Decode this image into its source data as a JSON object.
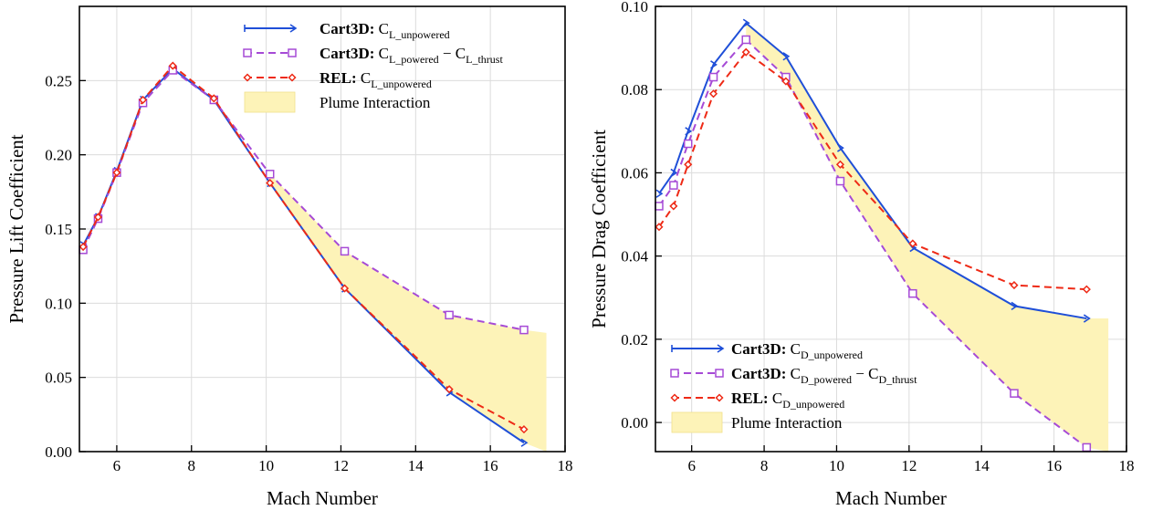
{
  "chart_data": [
    {
      "type": "line",
      "xlabel": "Mach Number",
      "ylabel": "Pressure Lift Coefficient",
      "xlim": [
        5,
        18
      ],
      "ylim": [
        0,
        0.3
      ],
      "xticks": [
        6,
        8,
        10,
        12,
        14,
        16,
        18
      ],
      "xtick_labels": [
        "6",
        "8",
        "10",
        "12",
        "14",
        "16",
        "18"
      ],
      "yticks": [
        0.0,
        0.05,
        0.1,
        0.15,
        0.2,
        0.25
      ],
      "ytick_labels": [
        "0.00",
        "0.05",
        "0.10",
        "0.15",
        "0.20",
        "0.25"
      ],
      "grid": true,
      "legend": {
        "position": "top-right",
        "entries": [
          {
            "prefix": "Cart3D:",
            "main": "C",
            "sub": "L_unpowered",
            "tail_main": "",
            "tail_sub": ""
          },
          {
            "prefix": "Cart3D:",
            "main": "C",
            "sub": "L_powered",
            "tail_main": " − C",
            "tail_sub": "L_thrust"
          },
          {
            "prefix": "REL:",
            "main": "C",
            "sub": "L_unpowered",
            "tail_main": "",
            "tail_sub": ""
          },
          {
            "prefix": "",
            "main": "Plume Interaction",
            "sub": "",
            "tail_main": "",
            "tail_sub": ""
          }
        ]
      },
      "series": [
        {
          "label_index": 0,
          "color": "#1f4fd8",
          "dash": "solid",
          "marker": "tri",
          "x": [
            5.1,
            5.5,
            6.0,
            6.7,
            7.5,
            8.6,
            10.1,
            12.1,
            14.9,
            16.9
          ],
          "y": [
            0.139,
            0.158,
            0.189,
            0.237,
            0.258,
            0.237,
            0.181,
            0.11,
            0.04,
            0.006
          ]
        },
        {
          "label_index": 1,
          "color": "#a64ad6",
          "dash": "dashed",
          "marker": "square",
          "x": [
            5.1,
            5.5,
            6.0,
            6.7,
            7.5,
            8.6,
            10.1,
            12.1,
            14.9,
            16.9
          ],
          "y": [
            0.136,
            0.157,
            0.188,
            0.235,
            0.257,
            0.237,
            0.187,
            0.135,
            0.092,
            0.082
          ]
        },
        {
          "label_index": 2,
          "color": "#ee2a16",
          "dash": "dashed",
          "marker": "diamond",
          "x": [
            5.1,
            5.5,
            6.0,
            6.7,
            7.5,
            8.6,
            10.1,
            12.1,
            14.9,
            16.9
          ],
          "y": [
            0.138,
            0.158,
            0.188,
            0.237,
            0.26,
            0.238,
            0.181,
            0.11,
            0.042,
            0.015
          ]
        }
      ],
      "fill_between": {
        "color": "#fdf3b8",
        "x": [
          10.1,
          12.1,
          14.9,
          16.9,
          17.5
        ],
        "y_upper": [
          0.187,
          0.135,
          0.092,
          0.082,
          0.08
        ],
        "y_lower": [
          0.181,
          0.11,
          0.04,
          0.006,
          -0.003
        ]
      }
    },
    {
      "type": "line",
      "xlabel": "Mach Number",
      "ylabel": "Pressure Drag Coefficient",
      "xlim": [
        5,
        18
      ],
      "ylim": [
        -0.007,
        0.1
      ],
      "xticks": [
        6,
        8,
        10,
        12,
        14,
        16,
        18
      ],
      "xtick_labels": [
        "6",
        "8",
        "10",
        "12",
        "14",
        "16",
        "18"
      ],
      "yticks": [
        0.0,
        0.02,
        0.04,
        0.06,
        0.08,
        0.1
      ],
      "ytick_labels": [
        "0.00",
        "0.02",
        "0.04",
        "0.06",
        "0.08",
        "0.10"
      ],
      "grid": true,
      "legend": {
        "position": "bottom-left",
        "entries": [
          {
            "prefix": "Cart3D:",
            "main": "C",
            "sub": "D_unpowered",
            "tail_main": "",
            "tail_sub": ""
          },
          {
            "prefix": "Cart3D:",
            "main": "C",
            "sub": "D_powered",
            "tail_main": " − C",
            "tail_sub": "D_thrust"
          },
          {
            "prefix": "REL:",
            "main": "C",
            "sub": "D_unpowered",
            "tail_main": "",
            "tail_sub": ""
          },
          {
            "prefix": "",
            "main": "Plume Interaction",
            "sub": "",
            "tail_main": "",
            "tail_sub": ""
          }
        ]
      },
      "series": [
        {
          "label_index": 0,
          "color": "#1f4fd8",
          "dash": "solid",
          "marker": "tri",
          "x": [
            5.1,
            5.5,
            5.9,
            6.6,
            7.5,
            8.6,
            10.1,
            12.1,
            14.9,
            16.9
          ],
          "y": [
            0.055,
            0.06,
            0.07,
            0.086,
            0.096,
            0.088,
            0.066,
            0.042,
            0.028,
            0.025
          ]
        },
        {
          "label_index": 1,
          "color": "#a64ad6",
          "dash": "dashed",
          "marker": "square",
          "x": [
            5.1,
            5.5,
            5.9,
            6.6,
            7.5,
            8.6,
            10.1,
            12.1,
            14.9,
            16.9
          ],
          "y": [
            0.052,
            0.057,
            0.067,
            0.083,
            0.092,
            0.083,
            0.058,
            0.031,
            0.007,
            -0.006
          ]
        },
        {
          "label_index": 2,
          "color": "#ee2a16",
          "dash": "dashed",
          "marker": "diamond",
          "x": [
            5.1,
            5.5,
            5.9,
            6.6,
            7.5,
            8.6,
            10.1,
            12.1,
            14.9,
            16.9
          ],
          "y": [
            0.047,
            0.052,
            0.062,
            0.079,
            0.089,
            0.082,
            0.062,
            0.043,
            0.033,
            0.032
          ]
        }
      ],
      "fill_between": {
        "color": "#fdf3b8",
        "x": [
          7.5,
          8.6,
          10.1,
          12.1,
          14.9,
          16.9,
          17.5
        ],
        "y_upper": [
          0.096,
          0.088,
          0.066,
          0.042,
          0.028,
          0.025,
          0.025
        ],
        "y_lower": [
          0.092,
          0.083,
          0.058,
          0.031,
          0.007,
          -0.006,
          -0.007
        ]
      }
    }
  ]
}
